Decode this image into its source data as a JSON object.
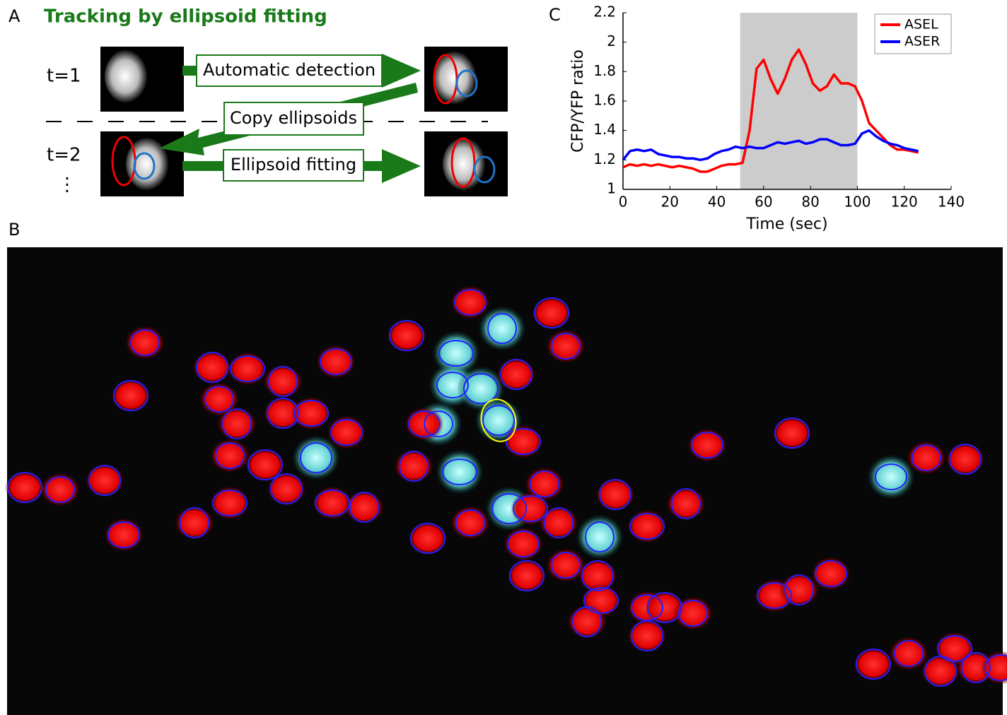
{
  "panel_labels": [
    "A",
    "B",
    "C"
  ],
  "panel_a": {
    "title": "Tracking by ellipsoid fitting",
    "time_labels": [
      "t=1",
      "t=2",
      "⋮"
    ],
    "steps": [
      "Automatic detection",
      "Copy ellipsoids",
      "Ellipsoid fitting"
    ]
  },
  "chart_data": {
    "type": "line",
    "x_label": "Time (sec)",
    "y_label": "CFP/YFP ratio",
    "x": [
      0,
      3,
      6,
      9,
      12,
      15,
      18,
      21,
      24,
      27,
      30,
      33,
      36,
      39,
      42,
      45,
      48,
      51,
      54,
      57,
      60,
      63,
      66,
      69,
      72,
      75,
      78,
      81,
      84,
      87,
      90,
      93,
      96,
      99,
      102,
      105,
      108,
      111,
      114,
      117,
      120,
      123,
      126
    ],
    "series": [
      {
        "name": "ASEL",
        "color": "#ff0000",
        "values": [
          1.15,
          1.17,
          1.16,
          1.17,
          1.16,
          1.17,
          1.16,
          1.15,
          1.16,
          1.15,
          1.14,
          1.12,
          1.12,
          1.14,
          1.16,
          1.17,
          1.17,
          1.18,
          1.4,
          1.82,
          1.88,
          1.75,
          1.65,
          1.75,
          1.88,
          1.95,
          1.85,
          1.72,
          1.67,
          1.7,
          1.78,
          1.72,
          1.72,
          1.7,
          1.6,
          1.45,
          1.4,
          1.35,
          1.3,
          1.27,
          1.27,
          1.26,
          1.25
        ]
      },
      {
        "name": "ASER",
        "color": "#0000ff",
        "values": [
          1.2,
          1.26,
          1.27,
          1.26,
          1.27,
          1.24,
          1.23,
          1.22,
          1.22,
          1.21,
          1.21,
          1.2,
          1.21,
          1.24,
          1.26,
          1.27,
          1.29,
          1.28,
          1.29,
          1.28,
          1.28,
          1.3,
          1.32,
          1.31,
          1.32,
          1.33,
          1.31,
          1.32,
          1.34,
          1.34,
          1.32,
          1.3,
          1.3,
          1.31,
          1.38,
          1.4,
          1.36,
          1.33,
          1.31,
          1.3,
          1.28,
          1.27,
          1.26
        ]
      }
    ],
    "shaded_region": [
      50,
      100
    ],
    "xlim": [
      0,
      140
    ],
    "xticks": [
      0,
      20,
      40,
      60,
      80,
      100,
      120,
      140
    ],
    "ylim": [
      1,
      2.2
    ],
    "yticks": [
      1,
      1.2,
      1.4,
      1.6,
      1.8,
      2,
      2.2
    ],
    "legend": "top-right"
  }
}
